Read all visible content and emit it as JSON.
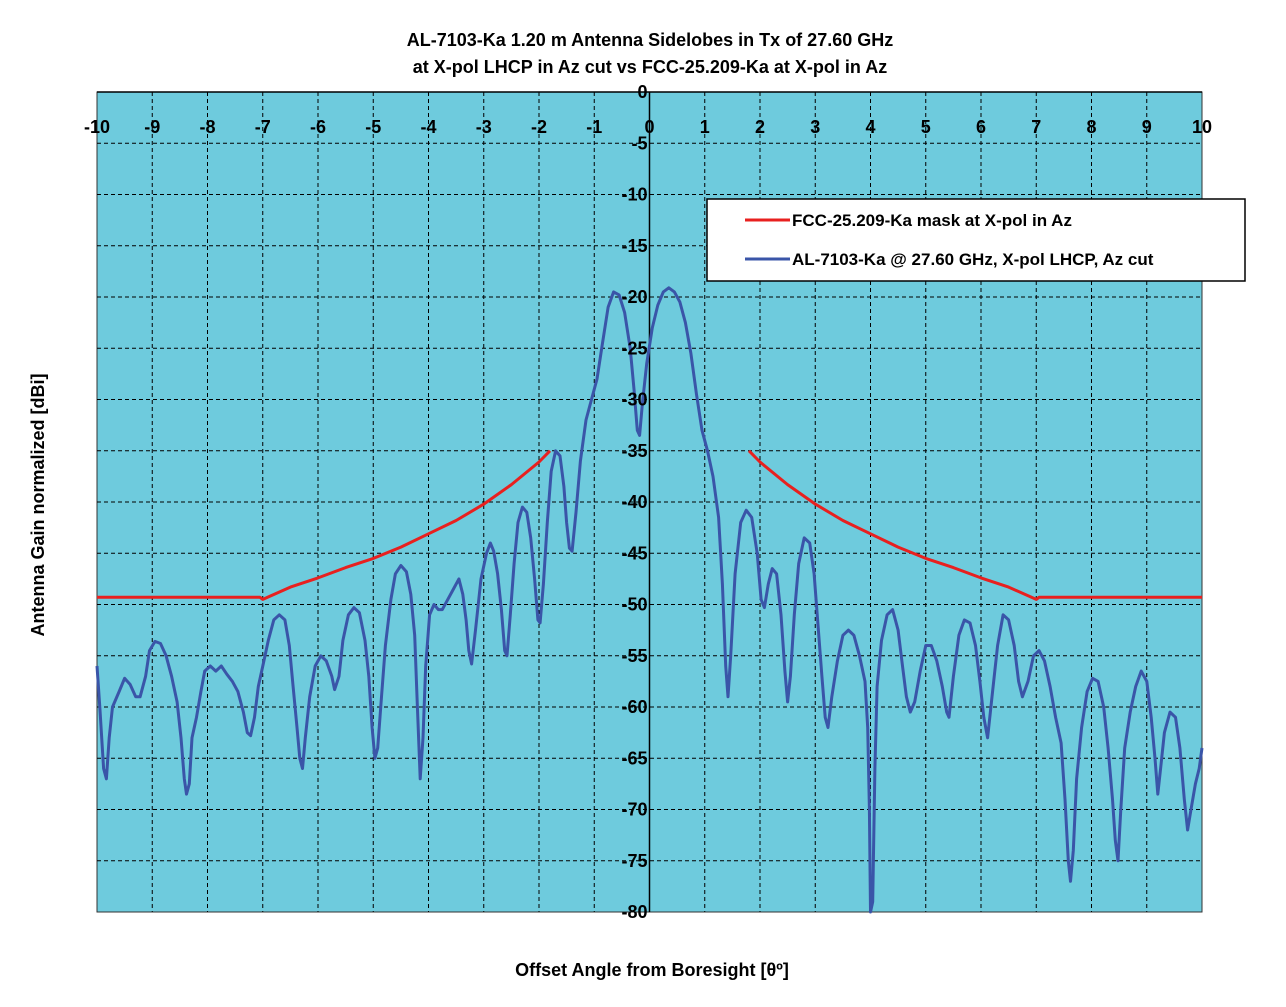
{
  "chart_data": {
    "type": "line",
    "title_line1": "AL-7103-Ka 1.20 m Antenna Sidelobes in Tx of 27.60 GHz",
    "title_line2": "at X-pol LHCP in Az cut vs FCC-25.209-Ka at X-pol in Az",
    "xlabel": "Offset Angle from Boresight [θº]",
    "ylabel": "Antenna Gain normalized [dBi]",
    "xlim": [
      -10,
      10
    ],
    "ylim": [
      -80,
      0
    ],
    "xticks": [
      -10,
      -9,
      -8,
      -7,
      -6,
      -5,
      -4,
      -3,
      -2,
      -1,
      0,
      1,
      2,
      3,
      4,
      5,
      6,
      7,
      8,
      9,
      10
    ],
    "yticks": [
      0,
      -5,
      -10,
      -15,
      -20,
      -25,
      -30,
      -35,
      -40,
      -45,
      -50,
      -55,
      -60,
      -65,
      -70,
      -75,
      -80
    ],
    "grid": true,
    "legend_position": "top-right",
    "plot_background": "#6ECBDD",
    "series": [
      {
        "name": "FCC-25.209-Ka mask at X-pol in Az",
        "color": "#E8201F",
        "segments": [
          [
            [
              -10,
              -49.3
            ],
            [
              -7.05,
              -49.3
            ],
            [
              -7,
              -49.5
            ],
            [
              -6.5,
              -48.3
            ],
            [
              -6,
              -47.4
            ],
            [
              -5.5,
              -46.4
            ],
            [
              -5,
              -45.5
            ],
            [
              -4.5,
              -44.4
            ],
            [
              -4,
              -43.1
            ],
            [
              -3.5,
              -41.8
            ],
            [
              -3,
              -40.2
            ],
            [
              -2.5,
              -38.3
            ],
            [
              -2,
              -36.1
            ],
            [
              -1.8,
              -35
            ]
          ],
          [
            [
              1.8,
              -35
            ],
            [
              2,
              -36.1
            ],
            [
              2.5,
              -38.3
            ],
            [
              3,
              -40.2
            ],
            [
              3.5,
              -41.8
            ],
            [
              4,
              -43.1
            ],
            [
              4.5,
              -44.4
            ],
            [
              5,
              -45.5
            ],
            [
              5.5,
              -46.4
            ],
            [
              6,
              -47.4
            ],
            [
              6.5,
              -48.3
            ],
            [
              7,
              -49.5
            ],
            [
              7.05,
              -49.3
            ],
            [
              10,
              -49.3
            ]
          ]
        ]
      },
      {
        "name": "AL-7103-Ka @ 27.60 GHz, X-pol LHCP, Az cut",
        "color": "#3A55A8",
        "points": [
          [
            -10,
            -56
          ],
          [
            -9.95,
            -60
          ],
          [
            -9.88,
            -66
          ],
          [
            -9.83,
            -67
          ],
          [
            -9.78,
            -63
          ],
          [
            -9.72,
            -60
          ],
          [
            -9.6,
            -58.5
          ],
          [
            -9.5,
            -57.2
          ],
          [
            -9.4,
            -57.8
          ],
          [
            -9.3,
            -59
          ],
          [
            -9.22,
            -59
          ],
          [
            -9.12,
            -57
          ],
          [
            -9.05,
            -54.5
          ],
          [
            -8.95,
            -53.6
          ],
          [
            -8.85,
            -53.8
          ],
          [
            -8.75,
            -55
          ],
          [
            -8.65,
            -57
          ],
          [
            -8.55,
            -59.5
          ],
          [
            -8.48,
            -63
          ],
          [
            -8.42,
            -67
          ],
          [
            -8.38,
            -68.5
          ],
          [
            -8.33,
            -67.5
          ],
          [
            -8.28,
            -63
          ],
          [
            -8.2,
            -61
          ],
          [
            -8.12,
            -58.5
          ],
          [
            -8.05,
            -56.5
          ],
          [
            -7.95,
            -56
          ],
          [
            -7.85,
            -56.5
          ],
          [
            -7.75,
            -56
          ],
          [
            -7.65,
            -56.8
          ],
          [
            -7.55,
            -57.5
          ],
          [
            -7.45,
            -58.5
          ],
          [
            -7.35,
            -60.5
          ],
          [
            -7.28,
            -62.5
          ],
          [
            -7.22,
            -62.8
          ],
          [
            -7.15,
            -61
          ],
          [
            -7.08,
            -58
          ],
          [
            -7.0,
            -56
          ],
          [
            -6.9,
            -53.5
          ],
          [
            -6.8,
            -51.5
          ],
          [
            -6.7,
            -51
          ],
          [
            -6.6,
            -51.5
          ],
          [
            -6.52,
            -54
          ],
          [
            -6.45,
            -58
          ],
          [
            -6.38,
            -62
          ],
          [
            -6.33,
            -65
          ],
          [
            -6.28,
            -66
          ],
          [
            -6.23,
            -63
          ],
          [
            -6.15,
            -59
          ],
          [
            -6.05,
            -56
          ],
          [
            -5.95,
            -55
          ],
          [
            -5.85,
            -55.5
          ],
          [
            -5.75,
            -57
          ],
          [
            -5.7,
            -58.3
          ],
          [
            -5.62,
            -57
          ],
          [
            -5.55,
            -53.5
          ],
          [
            -5.45,
            -51
          ],
          [
            -5.35,
            -50.3
          ],
          [
            -5.25,
            -50.8
          ],
          [
            -5.15,
            -53.5
          ],
          [
            -5.08,
            -57
          ],
          [
            -5.02,
            -62
          ],
          [
            -4.97,
            -65
          ],
          [
            -4.92,
            -64
          ],
          [
            -4.85,
            -59
          ],
          [
            -4.78,
            -54
          ],
          [
            -4.68,
            -49.5
          ],
          [
            -4.6,
            -47
          ],
          [
            -4.5,
            -46.2
          ],
          [
            -4.4,
            -46.8
          ],
          [
            -4.32,
            -49
          ],
          [
            -4.25,
            -53
          ],
          [
            -4.2,
            -60
          ],
          [
            -4.15,
            -67
          ],
          [
            -4.1,
            -63
          ],
          [
            -4.05,
            -56
          ],
          [
            -3.98,
            -51
          ],
          [
            -3.9,
            -50
          ],
          [
            -3.82,
            -50.5
          ],
          [
            -3.75,
            -50.5
          ],
          [
            -3.65,
            -49.5
          ],
          [
            -3.55,
            -48.5
          ],
          [
            -3.45,
            -47.5
          ],
          [
            -3.38,
            -49
          ],
          [
            -3.32,
            -51.5
          ],
          [
            -3.27,
            -54.5
          ],
          [
            -3.22,
            -55.8
          ],
          [
            -3.15,
            -52.5
          ],
          [
            -3.05,
            -47.5
          ],
          [
            -2.95,
            -45
          ],
          [
            -2.88,
            -44
          ],
          [
            -2.82,
            -44.8
          ],
          [
            -2.75,
            -47
          ],
          [
            -2.68,
            -50.5
          ],
          [
            -2.62,
            -54.5
          ],
          [
            -2.58,
            -55
          ],
          [
            -2.52,
            -51
          ],
          [
            -2.45,
            -46
          ],
          [
            -2.38,
            -42
          ],
          [
            -2.3,
            -40.5
          ],
          [
            -2.22,
            -41
          ],
          [
            -2.15,
            -43.5
          ],
          [
            -2.08,
            -47.5
          ],
          [
            -2.02,
            -51.5
          ],
          [
            -1.98,
            -51.8
          ],
          [
            -1.92,
            -48
          ],
          [
            -1.85,
            -42
          ],
          [
            -1.78,
            -37
          ],
          [
            -1.7,
            -35
          ],
          [
            -1.62,
            -35.5
          ],
          [
            -1.55,
            -38.5
          ],
          [
            -1.5,
            -42
          ],
          [
            -1.45,
            -44.5
          ],
          [
            -1.4,
            -44.8
          ],
          [
            -1.33,
            -41
          ],
          [
            -1.25,
            -36
          ],
          [
            -1.15,
            -32
          ],
          [
            -1.05,
            -30
          ],
          [
            -0.95,
            -28
          ],
          [
            -0.85,
            -24.5
          ],
          [
            -0.75,
            -21
          ],
          [
            -0.65,
            -19.5
          ],
          [
            -0.55,
            -19.8
          ],
          [
            -0.45,
            -21.5
          ],
          [
            -0.35,
            -25
          ],
          [
            -0.28,
            -29
          ],
          [
            -0.22,
            -33
          ],
          [
            -0.18,
            -33.5
          ],
          [
            -0.13,
            -30.5
          ],
          [
            -0.05,
            -26.5
          ],
          [
            0.05,
            -23
          ],
          [
            0.15,
            -20.8
          ],
          [
            0.25,
            -19.5
          ],
          [
            0.35,
            -19.1
          ],
          [
            0.45,
            -19.5
          ],
          [
            0.55,
            -20.5
          ],
          [
            0.65,
            -22.5
          ],
          [
            0.75,
            -25.5
          ],
          [
            0.85,
            -29.5
          ],
          [
            0.95,
            -33
          ],
          [
            1.05,
            -35
          ],
          [
            1.15,
            -37.5
          ],
          [
            1.25,
            -41.5
          ],
          [
            1.32,
            -48
          ],
          [
            1.38,
            -56
          ],
          [
            1.42,
            -59
          ],
          [
            1.47,
            -55
          ],
          [
            1.55,
            -47
          ],
          [
            1.65,
            -42
          ],
          [
            1.75,
            -40.8
          ],
          [
            1.85,
            -41.5
          ],
          [
            1.95,
            -45
          ],
          [
            2.02,
            -49.5
          ],
          [
            2.08,
            -50.3
          ],
          [
            2.15,
            -48
          ],
          [
            2.22,
            -46.5
          ],
          [
            2.3,
            -47
          ],
          [
            2.38,
            -51
          ],
          [
            2.45,
            -56.5
          ],
          [
            2.5,
            -59.5
          ],
          [
            2.55,
            -57
          ],
          [
            2.62,
            -51
          ],
          [
            2.7,
            -46
          ],
          [
            2.8,
            -43.5
          ],
          [
            2.9,
            -44
          ],
          [
            2.98,
            -47
          ],
          [
            3.05,
            -52
          ],
          [
            3.12,
            -57
          ],
          [
            3.18,
            -61
          ],
          [
            3.23,
            -62
          ],
          [
            3.3,
            -59
          ],
          [
            3.4,
            -55.5
          ],
          [
            3.5,
            -53
          ],
          [
            3.6,
            -52.5
          ],
          [
            3.7,
            -53
          ],
          [
            3.8,
            -55
          ],
          [
            3.9,
            -57.5
          ],
          [
            3.95,
            -62
          ],
          [
            3.98,
            -70
          ],
          [
            4.0,
            -80
          ],
          [
            4.04,
            -79
          ],
          [
            4.08,
            -66
          ],
          [
            4.12,
            -58
          ],
          [
            4.2,
            -53.5
          ],
          [
            4.3,
            -51
          ],
          [
            4.4,
            -50.5
          ],
          [
            4.5,
            -52.5
          ],
          [
            4.58,
            -56
          ],
          [
            4.65,
            -59
          ],
          [
            4.72,
            -60.5
          ],
          [
            4.8,
            -59.5
          ],
          [
            4.9,
            -56.5
          ],
          [
            5.0,
            -54
          ],
          [
            5.1,
            -54
          ],
          [
            5.2,
            -55.5
          ],
          [
            5.3,
            -58
          ],
          [
            5.38,
            -60.5
          ],
          [
            5.42,
            -61
          ],
          [
            5.5,
            -57
          ],
          [
            5.6,
            -53
          ],
          [
            5.7,
            -51.5
          ],
          [
            5.8,
            -51.8
          ],
          [
            5.9,
            -54
          ],
          [
            5.98,
            -57.5
          ],
          [
            6.05,
            -61
          ],
          [
            6.12,
            -63
          ],
          [
            6.2,
            -59
          ],
          [
            6.3,
            -54
          ],
          [
            6.4,
            -51
          ],
          [
            6.5,
            -51.5
          ],
          [
            6.6,
            -54
          ],
          [
            6.68,
            -57.5
          ],
          [
            6.75,
            -59
          ],
          [
            6.85,
            -57.5
          ],
          [
            6.95,
            -55
          ],
          [
            7.05,
            -54.5
          ],
          [
            7.15,
            -55.5
          ],
          [
            7.25,
            -58
          ],
          [
            7.35,
            -61
          ],
          [
            7.45,
            -63.5
          ],
          [
            7.52,
            -69
          ],
          [
            7.58,
            -75
          ],
          [
            7.62,
            -77
          ],
          [
            7.67,
            -74
          ],
          [
            7.73,
            -67
          ],
          [
            7.82,
            -62
          ],
          [
            7.92,
            -58.5
          ],
          [
            8.02,
            -57.2
          ],
          [
            8.12,
            -57.5
          ],
          [
            8.22,
            -60
          ],
          [
            8.3,
            -64
          ],
          [
            8.38,
            -69
          ],
          [
            8.43,
            -73
          ],
          [
            8.48,
            -75
          ],
          [
            8.53,
            -70
          ],
          [
            8.6,
            -64
          ],
          [
            8.7,
            -60.5
          ],
          [
            8.8,
            -58
          ],
          [
            8.9,
            -56.5
          ],
          [
            9.0,
            -57.5
          ],
          [
            9.08,
            -61
          ],
          [
            9.15,
            -65
          ],
          [
            9.2,
            -68.5
          ],
          [
            9.25,
            -66
          ],
          [
            9.32,
            -62.5
          ],
          [
            9.42,
            -60.5
          ],
          [
            9.52,
            -61
          ],
          [
            9.6,
            -64
          ],
          [
            9.68,
            -69
          ],
          [
            9.74,
            -72
          ],
          [
            9.8,
            -70
          ],
          [
            9.88,
            -67.5
          ],
          [
            9.95,
            -66
          ],
          [
            10,
            -64
          ]
        ]
      }
    ]
  }
}
